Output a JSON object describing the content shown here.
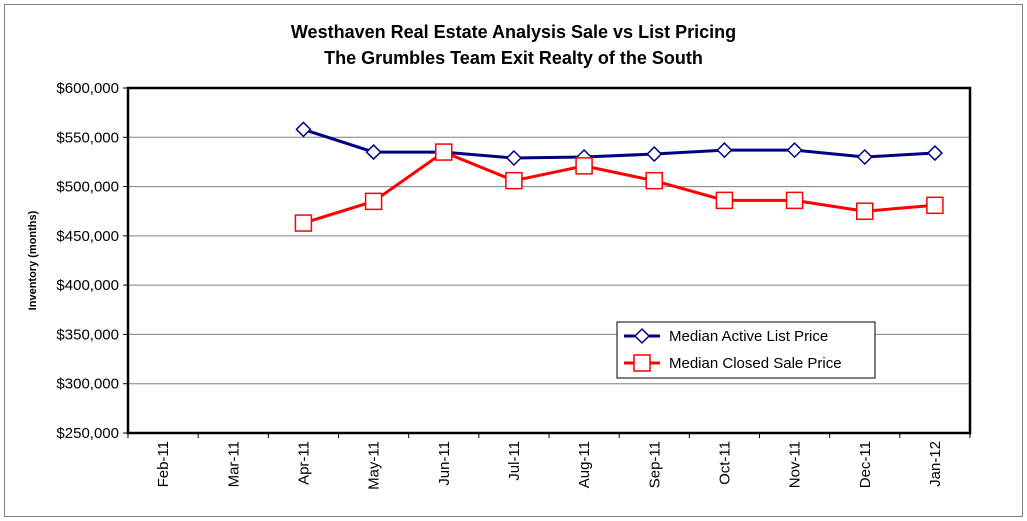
{
  "chart_data": {
    "type": "line",
    "title": "Westhaven Real Estate Analysis Sale vs List Pricing",
    "subtitle": "The Grumbles Team Exit Realty of the South",
    "ylabel": "Inventory (months)",
    "xlabel": "",
    "ylim": [
      250000,
      600000
    ],
    "ytick_step": 50000,
    "ytick_labels": [
      "$250,000",
      "$300,000",
      "$350,000",
      "$400,000",
      "$450,000",
      "$500,000",
      "$550,000",
      "$600,000"
    ],
    "categories": [
      "Feb-11",
      "Mar-11",
      "Apr-11",
      "May-11",
      "Jun-11",
      "Jul-11",
      "Aug-11",
      "Sep-11",
      "Oct-11",
      "Nov-11",
      "Dec-11",
      "Jan-12"
    ],
    "grid": "horizontal",
    "legend_position": "lower-right",
    "series": [
      {
        "name": "Median Active List Price",
        "color": "#000080",
        "marker": "diamond",
        "values": [
          null,
          null,
          558000,
          535000,
          535000,
          529000,
          530000,
          533000,
          537000,
          537000,
          530000,
          534000
        ]
      },
      {
        "name": "Median Closed Sale Price",
        "color": "#ff0000",
        "marker": "square",
        "values": [
          null,
          null,
          463000,
          485000,
          535000,
          506000,
          521000,
          506000,
          486000,
          486000,
          475000,
          481000
        ]
      }
    ]
  }
}
